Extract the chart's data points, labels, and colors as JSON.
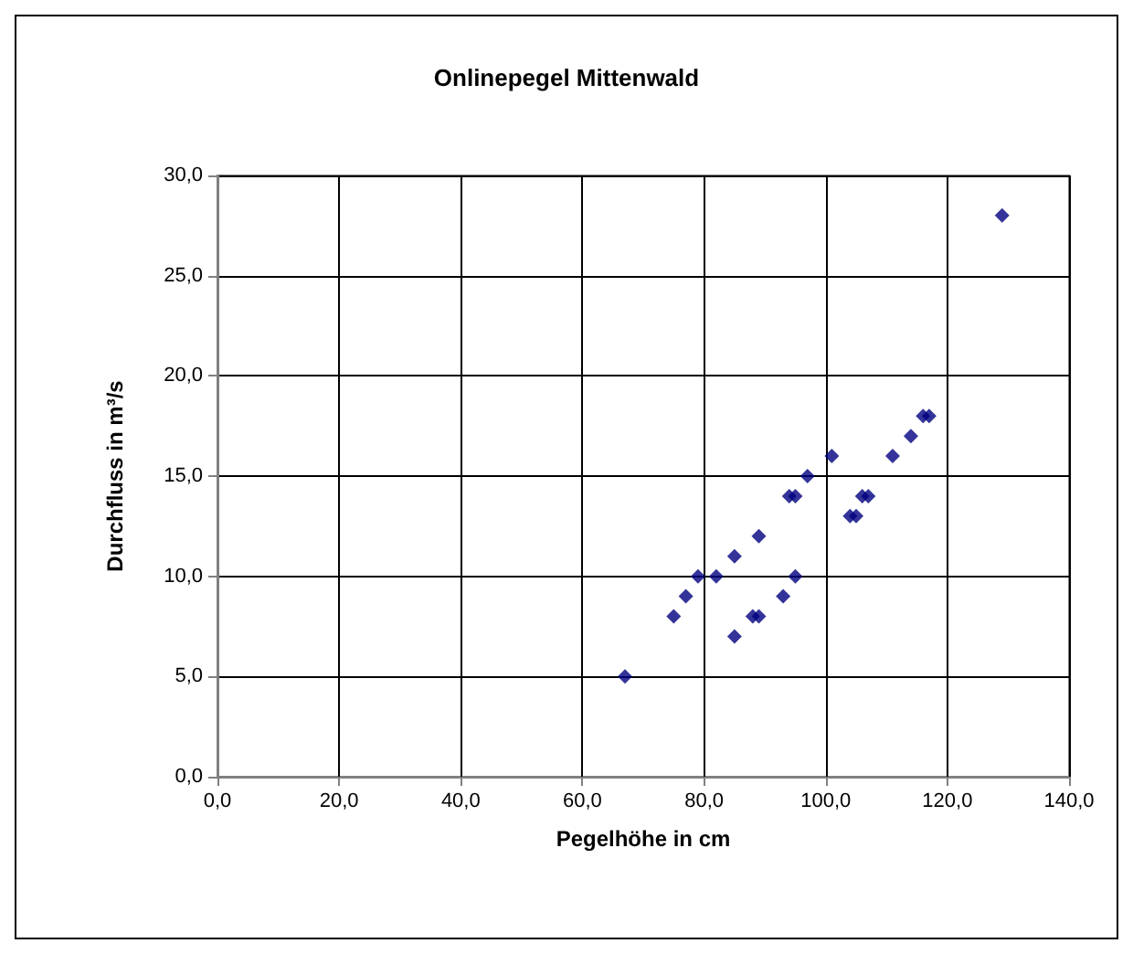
{
  "chart_data": {
    "type": "scatter",
    "title": "Onlinepegel Mittenwald",
    "xlabel": "Pegelhöhe in cm",
    "ylabel": "Durchfluss in m³/s",
    "x": [
      67,
      75,
      77,
      79,
      82,
      85,
      85,
      88,
      89,
      89,
      93,
      94,
      95,
      95,
      97,
      101,
      104,
      105,
      106,
      107,
      111,
      114,
      116,
      117,
      129
    ],
    "values": [
      5,
      8,
      9,
      10,
      10,
      7,
      11,
      8,
      8,
      12,
      9,
      14,
      14,
      10,
      15,
      16,
      13,
      13,
      14,
      14,
      16,
      17,
      18,
      18,
      28
    ],
    "color": "#000080",
    "marker": "diamond",
    "xlim": [
      0,
      140
    ],
    "xticks": [
      {
        "value": 0,
        "label": "0,0"
      },
      {
        "value": 20,
        "label": "20,0"
      },
      {
        "value": 40,
        "label": "40,0"
      },
      {
        "value": 60,
        "label": "60,0"
      },
      {
        "value": 80,
        "label": "80,0"
      },
      {
        "value": 100,
        "label": "100,0"
      },
      {
        "value": 120,
        "label": "120,0"
      },
      {
        "value": 140,
        "label": "140,0"
      }
    ],
    "ylim": [
      0,
      30
    ],
    "yticks": [
      {
        "value": 0,
        "label": "0,0"
      },
      {
        "value": 5,
        "label": "5,0"
      },
      {
        "value": 10,
        "label": "10,0"
      },
      {
        "value": 15,
        "label": "15,0"
      },
      {
        "value": 20,
        "label": "20,0"
      },
      {
        "value": 25,
        "label": "25,0"
      },
      {
        "value": 30,
        "label": "30,0"
      }
    ],
    "grid": true
  }
}
